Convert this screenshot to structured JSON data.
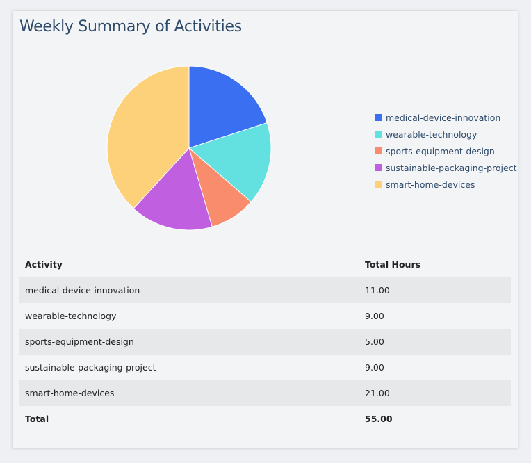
{
  "title": "Weekly Summary of Activities",
  "chart_data": {
    "type": "pie",
    "categories": [
      "medical-device-innovation",
      "wearable-technology",
      "sports-equipment-design",
      "sustainable-packaging-project",
      "smart-home-devices"
    ],
    "values": [
      11,
      9,
      5,
      9,
      21
    ],
    "colors": [
      "#3a6ff2",
      "#63e0e0",
      "#f98c6c",
      "#c05fe0",
      "#fdd07a"
    ],
    "legend_position": "right"
  },
  "table": {
    "headers": [
      "Activity",
      "Total Hours"
    ],
    "rows": [
      [
        "medical-device-innovation",
        "11.00"
      ],
      [
        "wearable-technology",
        "9.00"
      ],
      [
        "sports-equipment-design",
        "5.00"
      ],
      [
        "sustainable-packaging-project",
        "9.00"
      ],
      [
        "smart-home-devices",
        "21.00"
      ]
    ],
    "total": [
      "Total",
      "55.00"
    ]
  }
}
